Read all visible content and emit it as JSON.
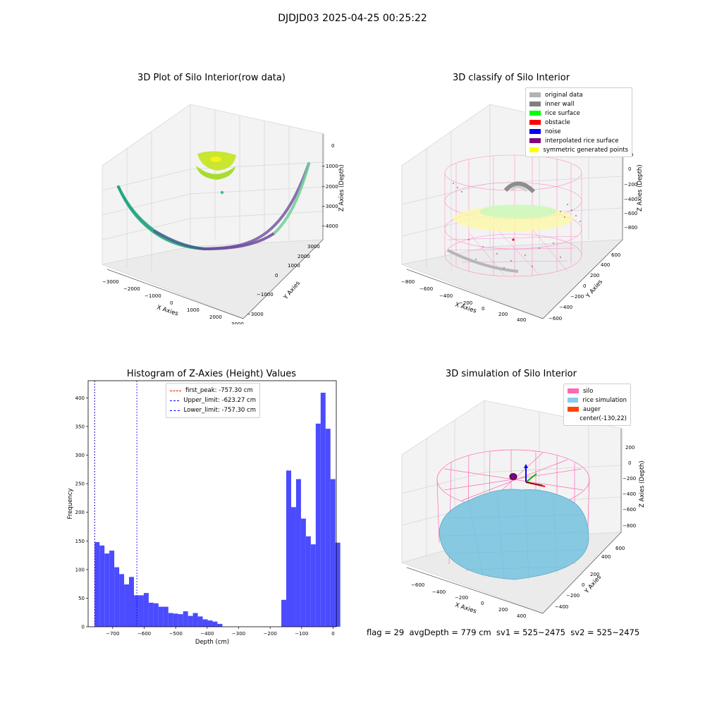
{
  "suptitle": "DJDJD03 2025-04-25 00:25:22",
  "footer": "flag = 29  avgDepth = 779 cm  sv1 = 525~2475  sv2 = 525~2475",
  "plot1": {
    "title": "3D Plot of Silo Interior(row data)",
    "xlabel": "X Axies",
    "ylabel": "Y Axies",
    "zlabel": "Z Axies (Depth)",
    "xticks": [
      "−3000",
      "−2000",
      "−1000",
      "0",
      "1000",
      "2000",
      "3000"
    ],
    "yticks": [
      "−3000",
      "−2000",
      "−1000",
      "0",
      "1000",
      "2000",
      "3000"
    ],
    "zticks": [
      "0",
      "−1000",
      "−2000",
      "−3000",
      "−4000"
    ]
  },
  "plot2": {
    "title": "3D classify of Silo Interior",
    "xlabel": "X Axies",
    "ylabel": "Y Axies",
    "zlabel": "Z Axies (Depth)",
    "xticks": [
      "−800",
      "−600",
      "−400",
      "−200",
      "0",
      "200",
      "400"
    ],
    "yticks": [
      "−600",
      "−400",
      "−200",
      "0",
      "200",
      "400",
      "600"
    ],
    "zticks": [
      "200",
      "0",
      "−200",
      "−400",
      "−600",
      "−800"
    ],
    "legend": [
      {
        "label": "original data",
        "color": "#b3b3b3"
      },
      {
        "label": "inner wall",
        "color": "#808080"
      },
      {
        "label": "rice surface",
        "color": "#00ff00"
      },
      {
        "label": "obstacle",
        "color": "#ff0000"
      },
      {
        "label": "noise",
        "color": "#0000ff"
      },
      {
        "label": "interpolated rice surface",
        "color": "#800080"
      },
      {
        "label": "symmetric generated points",
        "color": "#ffff00"
      }
    ]
  },
  "plot4": {
    "title": "3D simulation of Silo Interior",
    "xlabel": "X Axies",
    "ylabel": "Y Axies",
    "zlabel": "Z Axies (Depth)",
    "xticks": [
      "−600",
      "−400",
      "−200",
      "0",
      "200",
      "400"
    ],
    "yticks": [
      "−400",
      "−200",
      "0",
      "200",
      "400",
      "600"
    ],
    "zticks": [
      "200",
      "0",
      "−200",
      "−400",
      "−600",
      "−800"
    ],
    "legend": [
      {
        "label": "silo",
        "color": "#ff69b4"
      },
      {
        "label": "rice simulation",
        "color": "#87ceeb"
      },
      {
        "label": "auger",
        "color": "#ff4500"
      },
      {
        "label": "center(-130,22)",
        "color": ""
      }
    ]
  },
  "chart_data": {
    "type": "bar",
    "title": "Histogram of Z-Axies (Height) Values",
    "xlabel": "Depth (cm)",
    "ylabel": "Frequency",
    "xlim": [
      -778,
      10
    ],
    "ylim": [
      0,
      430
    ],
    "xticks": [
      -700,
      -600,
      -500,
      -400,
      -300,
      -200,
      -100,
      0
    ],
    "yticks": [
      0,
      50,
      100,
      150,
      200,
      250,
      300,
      350,
      400
    ],
    "bin_width": 15.6,
    "bin_start": -757.3,
    "values": [
      148,
      142,
      128,
      133,
      104,
      92,
      74,
      87,
      55,
      55,
      59,
      42,
      41,
      35,
      35,
      24,
      23,
      22,
      27,
      19,
      24,
      18,
      13,
      11,
      9,
      5,
      0,
      0,
      0,
      0,
      0,
      0,
      0,
      0,
      0,
      0,
      0,
      0,
      47,
      273,
      209,
      258,
      189,
      158,
      144,
      355,
      409,
      346,
      258,
      147
    ],
    "color": "#4b4bff",
    "lines": [
      {
        "label": "first_peak: -757.30 cm",
        "x": -757.3,
        "color": "#ff0000"
      },
      {
        "label": "Upper_limit: -623.27 cm",
        "x": -623.27,
        "color": "#0000ff"
      },
      {
        "label": "Lower_limit: -757.30 cm",
        "x": -757.3,
        "color": "#0000ff"
      }
    ],
    "legend_position": "upper-center"
  }
}
